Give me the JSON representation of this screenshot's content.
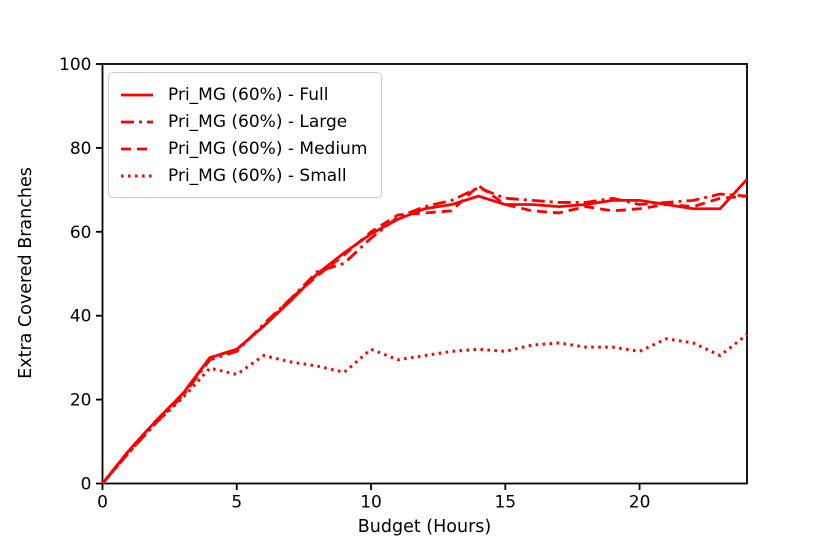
{
  "chart_data": {
    "type": "line",
    "title": "",
    "xlabel": "Budget (Hours)",
    "ylabel": "Extra Covered Branches",
    "xlim": [
      0,
      24
    ],
    "ylim": [
      0,
      100
    ],
    "xticks": [
      0,
      5,
      10,
      15,
      20
    ],
    "yticks": [
      0,
      20,
      40,
      60,
      80,
      100
    ],
    "grid": false,
    "legend_position": "upper-left",
    "background_color": "#ffffff",
    "axis_color": "#000000",
    "line_color": "#ff0000",
    "x": [
      0,
      1,
      2,
      3,
      4,
      5,
      6,
      7,
      8,
      9,
      10,
      11,
      12,
      13,
      14,
      15,
      16,
      17,
      18,
      19,
      20,
      21,
      22,
      23,
      24
    ],
    "series": [
      {
        "key": "full",
        "name": "Pri_MG (60%) - Full",
        "linestyle": "solid",
        "color": "#ff0000",
        "values": [
          0,
          8,
          15,
          21.5,
          30,
          32,
          37.5,
          43.5,
          50,
          55,
          59.5,
          63,
          65.5,
          66.5,
          68.5,
          66.5,
          66.5,
          66,
          66.5,
          67.5,
          67.5,
          66.5,
          65.5,
          65.5,
          72.5
        ]
      },
      {
        "key": "large",
        "name": "Pri_MG (60%) - Large",
        "linestyle": "dashdot",
        "color": "#ff0000",
        "values": [
          0,
          7.5,
          14.5,
          21,
          29.5,
          31.5,
          38,
          44,
          50.5,
          52.5,
          58.5,
          63.5,
          66,
          67.5,
          70.5,
          68,
          67.5,
          67,
          67,
          68,
          66.5,
          67,
          67.5,
          69,
          68.5
        ]
      },
      {
        "key": "medium",
        "name": "Pri_MG (60%) - Medium",
        "linestyle": "dashed",
        "color": "#ff0000",
        "values": [
          0,
          8,
          15,
          21.5,
          30,
          32,
          37.5,
          44,
          49.5,
          54.5,
          60,
          64,
          64.5,
          65,
          71,
          66.5,
          65,
          64.5,
          66,
          65,
          65.5,
          66.5,
          66,
          68,
          68.5
        ]
      },
      {
        "key": "small",
        "name": "Pri_MG (60%) - Small",
        "linestyle": "dotted",
        "color": "#ff0000",
        "values": [
          0,
          7.5,
          14.5,
          20.5,
          27.5,
          26,
          30.5,
          29,
          28,
          26.5,
          32,
          29.5,
          30.5,
          31.5,
          32,
          31.5,
          33,
          33.5,
          32.5,
          32.5,
          31.5,
          34.5,
          33.5,
          30.5,
          35.5
        ]
      }
    ]
  }
}
